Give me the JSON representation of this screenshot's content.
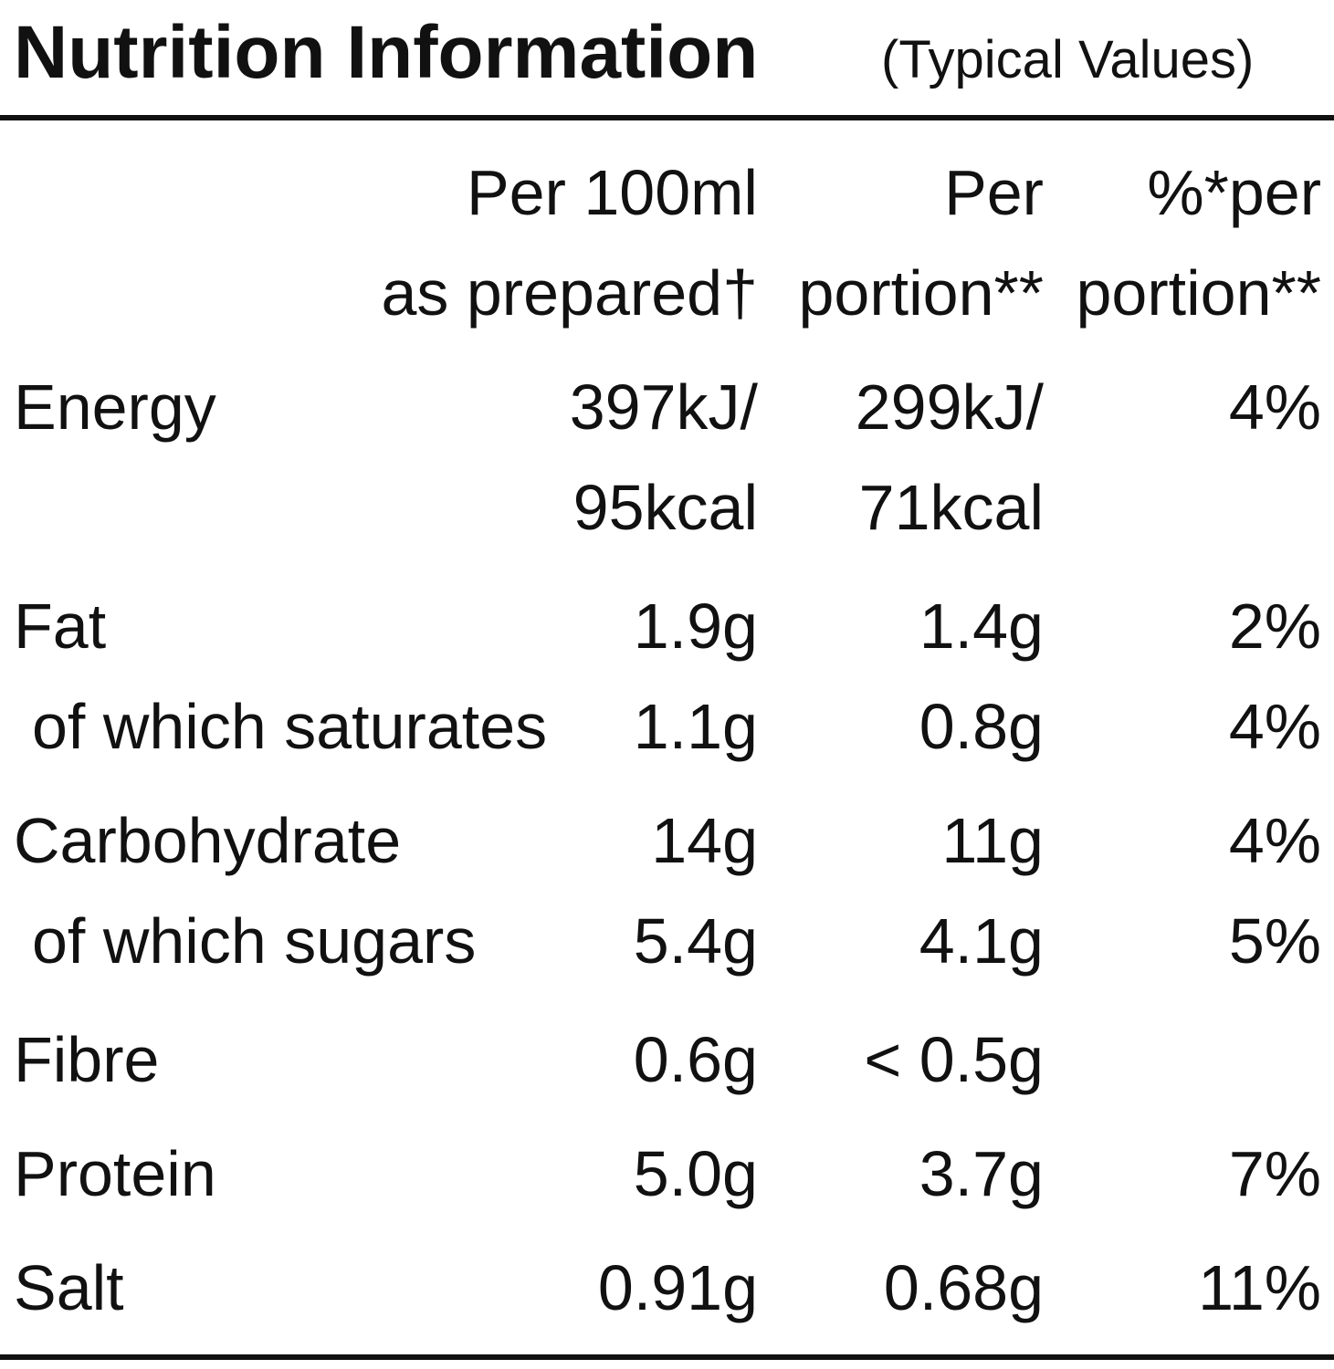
{
  "header": {
    "title": "Nutrition Information",
    "subtitle": "(Typical Values)"
  },
  "table": {
    "columns": [
      [
        "Per 100ml",
        "as prepared†"
      ],
      [
        "Per",
        "portion**"
      ],
      [
        "%*per",
        "portion**"
      ]
    ],
    "rows": [
      {
        "label": "Energy",
        "indent": false,
        "cells": [
          [
            "397kJ/",
            "95kcal"
          ],
          [
            "299kJ/",
            "71kcal"
          ],
          [
            "4%"
          ]
        ]
      },
      {
        "label": "Fat",
        "indent": false,
        "cells": [
          [
            "1.9g"
          ],
          [
            "1.4g"
          ],
          [
            "2%"
          ]
        ]
      },
      {
        "label": "of which saturates",
        "indent": true,
        "cells": [
          [
            "1.1g"
          ],
          [
            "0.8g"
          ],
          [
            "4%"
          ]
        ]
      },
      {
        "label": "Carbohydrate",
        "indent": false,
        "cells": [
          [
            "14g"
          ],
          [
            "11g"
          ],
          [
            "4%"
          ]
        ]
      },
      {
        "label": "of which sugars",
        "indent": true,
        "cells": [
          [
            "5.4g"
          ],
          [
            "4.1g"
          ],
          [
            "5%"
          ]
        ]
      },
      {
        "label": "Fibre",
        "indent": false,
        "cells": [
          [
            "0.6g"
          ],
          [
            "< 0.5g"
          ],
          null
        ]
      },
      {
        "label": "Protein",
        "indent": false,
        "cells": [
          [
            "5.0g"
          ],
          [
            "3.7g"
          ],
          [
            "7%"
          ]
        ]
      },
      {
        "label": "Salt",
        "indent": false,
        "cells": [
          [
            "0.91g"
          ],
          [
            "0.68g"
          ],
          [
            "11%"
          ]
        ]
      }
    ]
  }
}
